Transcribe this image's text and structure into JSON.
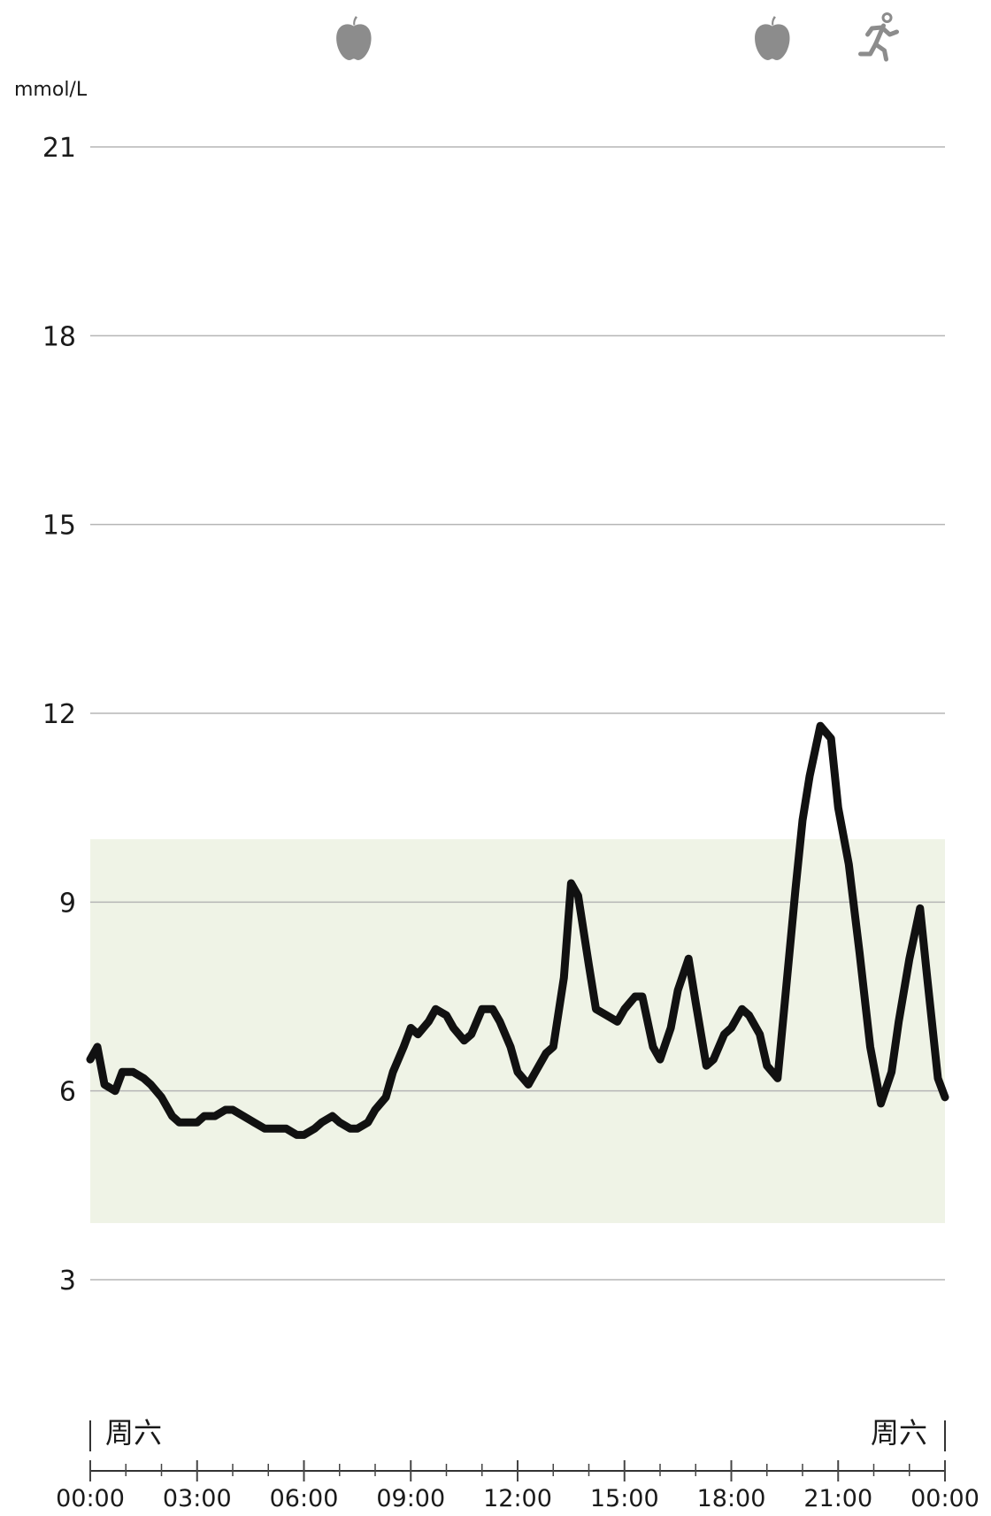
{
  "chart_data": {
    "type": "line",
    "unit_label": "mmol/L",
    "title": "",
    "xlabel": "",
    "ylabel": "mmol/L",
    "ylim": [
      0,
      21
    ],
    "y_ticks": [
      21,
      18,
      15,
      12,
      9,
      6,
      3
    ],
    "xlim": [
      "00:00",
      "24:00"
    ],
    "x_tick_labels": [
      "00:00",
      "03:00",
      "06:00",
      "09:00",
      "12:00",
      "15:00",
      "18:00",
      "21:00",
      "00:00"
    ],
    "day_label_start": "周六",
    "day_label_end": "周六",
    "grid": true,
    "colors": {
      "line": "#111111",
      "target_band": "#eff3e6",
      "grid": "#b5b5b5",
      "event_icon": "#8c8c8c"
    },
    "target_range": [
      3.9,
      10.0
    ],
    "events": [
      {
        "type": "meal",
        "icon": "apple-icon",
        "time_hours": 7.4
      },
      {
        "type": "meal",
        "icon": "apple-icon",
        "time_hours": 19.15
      },
      {
        "type": "exercise",
        "icon": "running-icon",
        "time_hours": 22.1
      }
    ],
    "series": [
      {
        "x_hours": [
          0,
          0.2,
          0.4,
          0.7,
          0.9,
          1.2,
          1.5,
          1.7,
          2.0,
          2.3,
          2.5,
          2.9,
          3.0,
          3.2,
          3.5,
          3.8,
          4.0,
          4.3,
          4.6,
          4.9,
          5.2,
          5.5,
          5.8,
          6.0,
          6.3,
          6.5,
          6.8,
          7.0,
          7.3,
          7.5,
          7.8,
          8.0,
          8.3,
          8.5,
          8.8,
          9.0,
          9.2,
          9.5,
          9.7,
          10.0,
          10.2,
          10.5,
          10.7,
          11.0,
          11.3,
          11.5,
          11.8,
          12.0,
          12.3,
          12.5,
          12.8,
          13.0,
          13.3,
          13.5,
          13.7,
          14.0,
          14.2,
          14.5,
          14.8,
          15.0,
          15.3,
          15.5,
          15.8,
          16.0,
          16.3,
          16.5,
          16.8,
          17.0,
          17.3,
          17.5,
          17.8,
          18.0,
          18.3,
          18.5,
          18.8,
          19.0,
          19.3,
          19.5,
          19.8,
          20.0,
          20.2,
          20.5,
          20.8,
          21.0,
          21.3,
          21.6,
          21.9,
          22.2,
          22.5,
          22.7,
          23.0,
          23.3,
          23.5,
          23.8,
          24.0
        ],
        "values": [
          6.5,
          6.7,
          6.1,
          6.0,
          6.3,
          6.3,
          6.2,
          6.1,
          5.9,
          5.6,
          5.5,
          5.5,
          5.5,
          5.6,
          5.6,
          5.7,
          5.7,
          5.6,
          5.5,
          5.4,
          5.4,
          5.4,
          5.3,
          5.3,
          5.4,
          5.5,
          5.6,
          5.5,
          5.4,
          5.4,
          5.5,
          5.7,
          5.9,
          6.3,
          6.7,
          7.0,
          6.9,
          7.1,
          7.3,
          7.2,
          7.0,
          6.8,
          6.9,
          7.3,
          7.3,
          7.1,
          6.7,
          6.3,
          6.1,
          6.3,
          6.6,
          6.7,
          7.8,
          9.3,
          9.1,
          8.0,
          7.3,
          7.2,
          7.1,
          7.3,
          7.5,
          7.5,
          6.7,
          6.5,
          7.0,
          7.6,
          8.1,
          7.4,
          6.4,
          6.5,
          6.9,
          7.0,
          7.3,
          7.2,
          6.9,
          6.4,
          6.2,
          7.4,
          9.2,
          10.3,
          11.0,
          11.8,
          11.6,
          10.5,
          9.6,
          8.2,
          6.7,
          5.8,
          6.3,
          7.1,
          8.1,
          8.9,
          7.8,
          6.2,
          5.9
        ]
      }
    ]
  }
}
